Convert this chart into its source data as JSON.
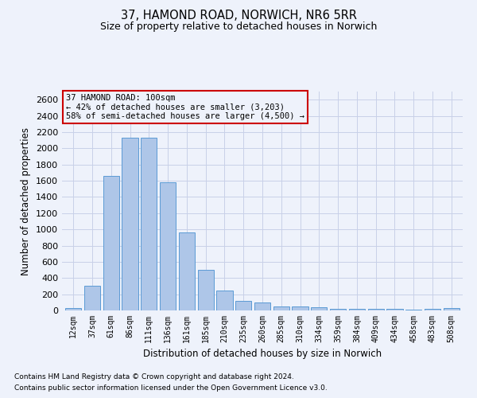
{
  "title1": "37, HAMOND ROAD, NORWICH, NR6 5RR",
  "title2": "Size of property relative to detached houses in Norwich",
  "xlabel": "Distribution of detached houses by size in Norwich",
  "ylabel": "Number of detached properties",
  "footnote1": "Contains HM Land Registry data © Crown copyright and database right 2024.",
  "footnote2": "Contains public sector information licensed under the Open Government Licence v3.0.",
  "annotation_line1": "37 HAMOND ROAD: 100sqm",
  "annotation_line2": "← 42% of detached houses are smaller (3,203)",
  "annotation_line3": "58% of semi-detached houses are larger (4,500) →",
  "categories": [
    "12sqm",
    "37sqm",
    "61sqm",
    "86sqm",
    "111sqm",
    "136sqm",
    "161sqm",
    "185sqm",
    "210sqm",
    "235sqm",
    "260sqm",
    "285sqm",
    "310sqm",
    "334sqm",
    "359sqm",
    "384sqm",
    "409sqm",
    "434sqm",
    "458sqm",
    "483sqm",
    "508sqm"
  ],
  "values": [
    25,
    300,
    1660,
    2130,
    2130,
    1585,
    960,
    500,
    250,
    120,
    100,
    50,
    50,
    35,
    20,
    20,
    20,
    20,
    10,
    20,
    25
  ],
  "bar_color": "#aec6e8",
  "bar_edge_color": "#5b9bd5",
  "ylim": [
    0,
    2700
  ],
  "yticks": [
    0,
    200,
    400,
    600,
    800,
    1000,
    1200,
    1400,
    1600,
    1800,
    2000,
    2200,
    2400,
    2600
  ],
  "annotation_box_color": "#cc0000",
  "bg_color": "#eef2fb",
  "grid_color": "#c8d0e8"
}
